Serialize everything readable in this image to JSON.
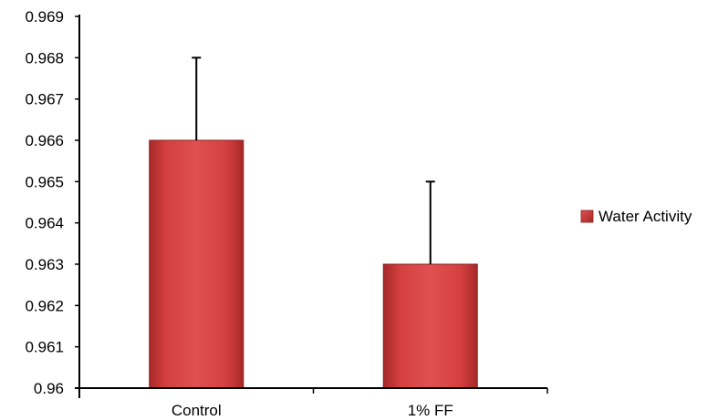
{
  "chart_data": {
    "type": "bar",
    "categories": [
      "Control",
      "1% FF"
    ],
    "series": [
      {
        "name": "Water Activity",
        "values": [
          0.966,
          0.963
        ],
        "error_upper": [
          0.968,
          0.965
        ],
        "color": "#d94545"
      }
    ],
    "ylim": [
      0.96,
      0.969
    ],
    "yticks": [
      "0.96",
      "0.961",
      "0.962",
      "0.963",
      "0.964",
      "0.965",
      "0.966",
      "0.967",
      "0.968",
      "0.969"
    ],
    "title": "",
    "xlabel": "",
    "ylabel": "",
    "grid": false,
    "legend_position": "right"
  }
}
